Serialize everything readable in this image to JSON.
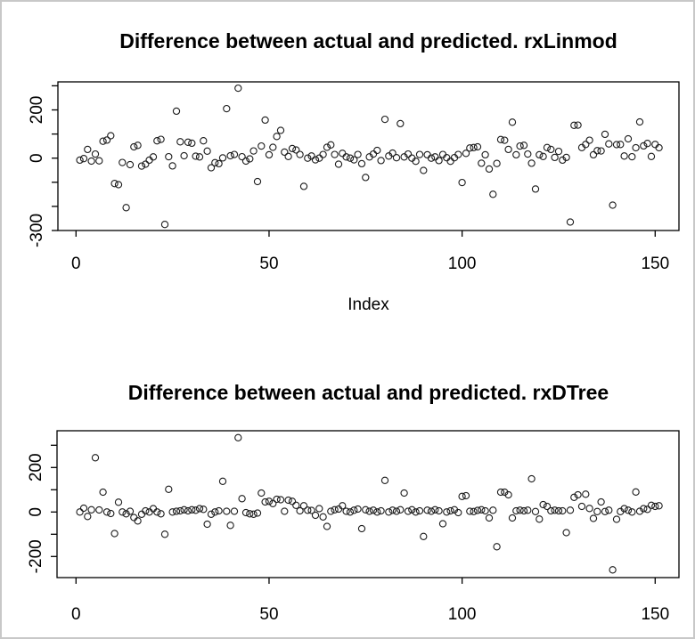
{
  "page": {
    "background_color": "#ffffff",
    "border_color": "#c8c8c8"
  },
  "chart_data": [
    {
      "type": "scatter",
      "title": "Difference between actual and predicted. rxLinmod",
      "xlabel": "Index",
      "ylabel": "",
      "marker": "open-circle",
      "grid": false,
      "xlim": [
        -5,
        156
      ],
      "ylim": [
        -300,
        315
      ],
      "x_ticks": [
        {
          "value": 0,
          "label": "0"
        },
        {
          "value": 50,
          "label": "50"
        },
        {
          "value": 100,
          "label": "100"
        },
        {
          "value": 150,
          "label": "150"
        }
      ],
      "y_ticks": [
        {
          "value": 300,
          "label": ""
        },
        {
          "value": 200,
          "label": "200"
        },
        {
          "value": 100,
          "label": ""
        },
        {
          "value": 0,
          "label": "0"
        },
        {
          "value": -100,
          "label": ""
        },
        {
          "value": -200,
          "label": ""
        },
        {
          "value": -300,
          "label": "-300"
        }
      ],
      "x": [
        1,
        2,
        3,
        4,
        5,
        6,
        7,
        8,
        9,
        10,
        11,
        12,
        13,
        14,
        15,
        16,
        17,
        18,
        19,
        20,
        21,
        22,
        23,
        24,
        25,
        26,
        27,
        28,
        29,
        30,
        31,
        32,
        33,
        34,
        35,
        36,
        37,
        38,
        39,
        40,
        41,
        42,
        43,
        44,
        45,
        46,
        47,
        48,
        49,
        50,
        51,
        52,
        53,
        54,
        55,
        56,
        57,
        58,
        59,
        60,
        61,
        62,
        63,
        64,
        65,
        66,
        67,
        68,
        69,
        70,
        71,
        72,
        73,
        74,
        75,
        76,
        77,
        78,
        79,
        80,
        81,
        82,
        83,
        84,
        85,
        86,
        87,
        88,
        89,
        90,
        91,
        92,
        93,
        94,
        95,
        96,
        97,
        98,
        99,
        100,
        101,
        102,
        103,
        104,
        105,
        106,
        107,
        108,
        109,
        110,
        111,
        112,
        113,
        114,
        115,
        116,
        117,
        118,
        119,
        120,
        121,
        122,
        123,
        124,
        125,
        126,
        127,
        128,
        129,
        130,
        131,
        132,
        133,
        134,
        135,
        136,
        137,
        138,
        139,
        140,
        141,
        142,
        143,
        144,
        145,
        146,
        147,
        148,
        149,
        150,
        151
      ],
      "y": [
        -8,
        -2,
        36,
        -12,
        17,
        -11,
        70,
        75,
        93,
        -105,
        -110,
        -18,
        -205,
        -27,
        47,
        53,
        -33,
        -25,
        -8,
        5,
        72,
        78,
        -275,
        6,
        -32,
        195,
        68,
        10,
        66,
        62,
        8,
        5,
        72,
        29,
        -40,
        -19,
        -23,
        1,
        205,
        10,
        15,
        290,
        6,
        -12,
        -3,
        30,
        -97,
        50,
        158,
        14,
        45,
        90,
        115,
        25,
        7,
        40,
        34,
        15,
        -117,
        0,
        9,
        -7,
        0,
        15,
        45,
        55,
        15,
        -25,
        20,
        5,
        0,
        -7,
        15,
        -23,
        -80,
        5,
        17,
        32,
        -10,
        161,
        9,
        21,
        2,
        143,
        5,
        17,
        0,
        -13,
        15,
        -51,
        14,
        0,
        5,
        -10,
        15,
        2,
        -13,
        2,
        15,
        -101,
        20,
        42,
        44,
        47,
        -21,
        14,
        -45,
        -150,
        -22,
        77,
        74,
        36,
        149,
        14,
        50,
        53,
        17,
        -21,
        -128,
        14,
        7,
        44,
        36,
        3,
        28,
        -8,
        3,
        -265,
        136,
        137,
        44,
        57,
        74,
        14,
        31,
        30,
        99,
        59,
        -195,
        56,
        57,
        9,
        80,
        6,
        43,
        150,
        51,
        61,
        7,
        57,
        43
      ]
    },
    {
      "type": "scatter",
      "title": "Difference between actual and predicted. rxDTree",
      "xlabel": "",
      "ylabel": "",
      "marker": "open-circle",
      "grid": false,
      "xlim": [
        -5,
        156
      ],
      "ylim": [
        -290,
        365
      ],
      "x_ticks": [
        {
          "value": 0,
          "label": "0"
        },
        {
          "value": 50,
          "label": "50"
        },
        {
          "value": 100,
          "label": "100"
        },
        {
          "value": 150,
          "label": "150"
        }
      ],
      "y_ticks": [
        {
          "value": 300,
          "label": ""
        },
        {
          "value": 200,
          "label": "200"
        },
        {
          "value": 100,
          "label": ""
        },
        {
          "value": 0,
          "label": "0"
        },
        {
          "value": -100,
          "label": ""
        },
        {
          "value": -200,
          "label": "-200"
        }
      ],
      "x": [
        1,
        2,
        3,
        4,
        5,
        6,
        7,
        8,
        9,
        10,
        11,
        12,
        13,
        14,
        15,
        16,
        17,
        18,
        19,
        20,
        21,
        22,
        23,
        24,
        25,
        26,
        27,
        28,
        29,
        30,
        31,
        32,
        33,
        34,
        35,
        36,
        37,
        38,
        39,
        40,
        41,
        42,
        43,
        44,
        45,
        46,
        47,
        48,
        49,
        50,
        51,
        52,
        53,
        54,
        55,
        56,
        57,
        58,
        59,
        60,
        61,
        62,
        63,
        64,
        65,
        66,
        67,
        68,
        69,
        70,
        71,
        72,
        73,
        74,
        75,
        76,
        77,
        78,
        79,
        80,
        81,
        82,
        83,
        84,
        85,
        86,
        87,
        88,
        89,
        90,
        91,
        92,
        93,
        94,
        95,
        96,
        97,
        98,
        99,
        100,
        101,
        102,
        103,
        104,
        105,
        106,
        107,
        108,
        109,
        110,
        111,
        112,
        113,
        114,
        115,
        116,
        117,
        118,
        119,
        120,
        121,
        122,
        123,
        124,
        125,
        126,
        127,
        128,
        129,
        130,
        131,
        132,
        133,
        134,
        135,
        136,
        137,
        138,
        139,
        140,
        141,
        142,
        143,
        144,
        145,
        146,
        147,
        148,
        149,
        150,
        151
      ],
      "y": [
        0,
        17,
        -20,
        10,
        244,
        9,
        89,
        0,
        -7,
        -97,
        44,
        0,
        -8,
        3,
        -25,
        -40,
        -10,
        5,
        0,
        15,
        0,
        -8,
        -100,
        102,
        0,
        3,
        5,
        10,
        5,
        10,
        8,
        15,
        12,
        -55,
        -10,
        0,
        5,
        138,
        3,
        -60,
        3,
        334,
        60,
        -3,
        -8,
        -10,
        -5,
        85,
        45,
        48,
        38,
        57,
        55,
        3,
        53,
        48,
        30,
        5,
        28,
        8,
        7,
        -15,
        15,
        -22,
        -65,
        3,
        10,
        13,
        28,
        3,
        0,
        8,
        13,
        -75,
        10,
        3,
        8,
        0,
        5,
        142,
        0,
        8,
        3,
        10,
        85,
        3,
        10,
        0,
        5,
        -110,
        8,
        3,
        10,
        5,
        -53,
        0,
        5,
        10,
        -3,
        70,
        73,
        3,
        2,
        7,
        10,
        5,
        -27,
        8,
        -156,
        89,
        89,
        77,
        -27,
        5,
        8,
        5,
        8,
        149,
        2,
        -32,
        33,
        25,
        5,
        8,
        5,
        5,
        -93,
        8,
        66,
        77,
        25,
        80,
        16,
        -29,
        2,
        45,
        2,
        8,
        -260,
        -33,
        2,
        15,
        8,
        0,
        90,
        3,
        15,
        12,
        30,
        25,
        28
      ]
    }
  ]
}
